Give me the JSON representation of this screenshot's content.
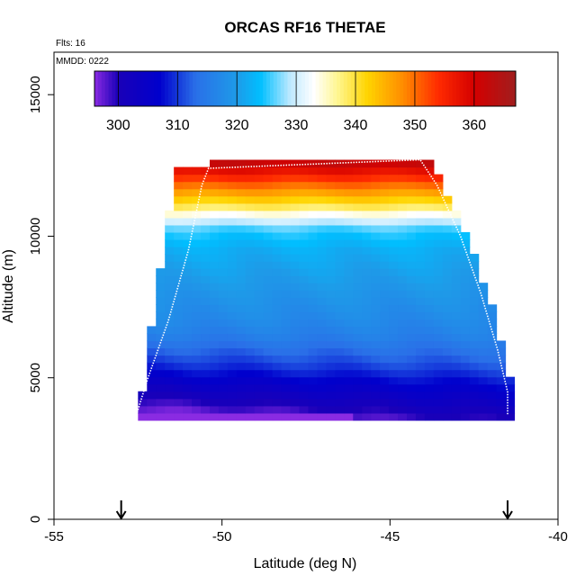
{
  "chart_data": {
    "type": "heatmap",
    "title": "ORCAS RF16 THETAE",
    "notes": [
      "Flts: 16",
      "MMDD: 0222"
    ],
    "xlabel": "Latitude (deg N)",
    "ylabel": "Altitude (m)",
    "xlim": [
      -55,
      -40
    ],
    "ylim": [
      0,
      16500
    ],
    "x_ticks": [
      -55,
      -50,
      -45,
      -40
    ],
    "y_ticks": [
      0,
      5000,
      10000,
      15000
    ],
    "colorbar": {
      "range": [
        296,
        367
      ],
      "ticks": [
        300,
        310,
        320,
        330,
        340,
        350,
        360
      ],
      "stops": [
        {
          "value": 296,
          "color": "#8a2be2"
        },
        {
          "value": 300,
          "color": "#1a00b8"
        },
        {
          "value": 307,
          "color": "#0000cd"
        },
        {
          "value": 313,
          "color": "#2a6fe8"
        },
        {
          "value": 320,
          "color": "#1e9be8"
        },
        {
          "value": 324,
          "color": "#00bfff"
        },
        {
          "value": 329,
          "color": "#bfe9ff"
        },
        {
          "value": 333,
          "color": "#ffffff"
        },
        {
          "value": 337,
          "color": "#fff68f"
        },
        {
          "value": 342,
          "color": "#ffd400"
        },
        {
          "value": 348,
          "color": "#ff8c00"
        },
        {
          "value": 354,
          "color": "#ff2a00"
        },
        {
          "value": 360,
          "color": "#d40000"
        },
        {
          "value": 367,
          "color": "#a01e1e"
        }
      ]
    },
    "grid": {
      "lat_min": -52.5,
      "lat_max": -41.3,
      "alt_min": 3500,
      "alt_max": 12700,
      "lat_cells": 42,
      "alt_cells": 36,
      "data_left_edge_lat": [
        -52.5,
        -51.3
      ],
      "data_right_edge_lat": [
        -41.3,
        -43.8
      ],
      "data_top_alt_by_lat": [
        [
          -52.5,
          12000
        ],
        [
          -51.5,
          12500
        ],
        [
          -48.2,
          12700
        ],
        [
          -44.0,
          12700
        ]
      ]
    },
    "thetae_profile_reference": {
      "altitude_m": [
        3500,
        4500,
        5500,
        6500,
        7500,
        8500,
        9500,
        10200,
        10700,
        11000,
        11400,
        11800,
        12200,
        12600
      ],
      "thetae_K": [
        300,
        306,
        312,
        316,
        318,
        320,
        322,
        325,
        332,
        338,
        344,
        350,
        356,
        362
      ]
    },
    "flight_track": {
      "lat": [
        -52.6,
        -52.2,
        -51.6,
        -51.0,
        -50.6,
        -50.4,
        -44.1,
        -43.6,
        -42.9,
        -42.3,
        -41.8,
        -41.5,
        -41.5
      ],
      "alt": [
        3500,
        5000,
        7000,
        9500,
        11800,
        12400,
        12700,
        11800,
        10000,
        8000,
        6000,
        4500,
        3700
      ]
    },
    "markers": {
      "type": "arrow",
      "lat": [
        -53.0,
        -41.5
      ]
    }
  }
}
